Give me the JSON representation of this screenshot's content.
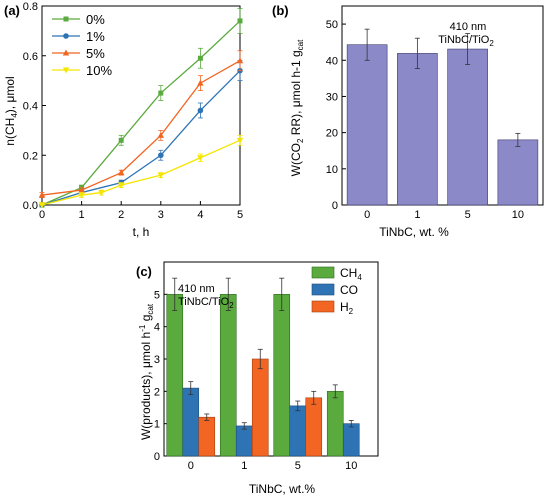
{
  "colors": {
    "green": "#5aaa3e",
    "blue": "#2e74b5",
    "orange": "#f26522",
    "yellow": "#f5e600",
    "bar_b": "#8c89c8"
  },
  "panel_a": {
    "label": "(a)",
    "xlabel": "t, h",
    "ylabel_main": "n(CH",
    "ylabel_sub": "4",
    "ylabel_tail": "), μmol"
  },
  "panel_b": {
    "label": "(b)",
    "annotation_line1": "410 nm",
    "annotation_line2_main": "TiNbC/TiO",
    "annotation_line2_sub": "2",
    "xlabel": "TiNbC, wt. %",
    "ylabel_main": "W(CO",
    "ylabel_sub1": "2",
    "ylabel_mid": " RR), μmol h-1 g",
    "ylabel_sub2": "cat"
  },
  "panel_c": {
    "label": "(c)",
    "annotation_line1": "410 nm",
    "annotation_line2_main": "TiNbC/TiO",
    "annotation_line2_sub": "2",
    "xlabel": "TiNbC, wt.%",
    "ylabel_main": "W(products), μmol h",
    "ylabel_sup": "-1",
    "ylabel_g": " g",
    "ylabel_sub": "cat",
    "legend": [
      {
        "main": "CH",
        "sub": "4"
      },
      {
        "main": "CO",
        "sub": ""
      },
      {
        "main": "H",
        "sub": "2"
      }
    ]
  },
  "chart_data": [
    {
      "type": "line",
      "title": "",
      "xlabel": "t, h",
      "ylabel": "n(CH4), μmol",
      "xlim": [
        0,
        5
      ],
      "ylim": [
        0,
        0.8
      ],
      "xticks": [
        "0",
        "1",
        "2",
        "3",
        "4",
        "5"
      ],
      "yticks": [
        "0.0",
        "0.2",
        "0.4",
        "0.6",
        "0.8"
      ],
      "legend_position": "top-left",
      "series": [
        {
          "name": "0%",
          "marker": "square",
          "x": [
            0,
            1,
            2,
            3,
            4,
            5
          ],
          "y": [
            0.0,
            0.07,
            0.26,
            0.45,
            0.59,
            0.74
          ],
          "err": [
            0.01,
            0.01,
            0.02,
            0.03,
            0.04,
            0.05
          ]
        },
        {
          "name": "1%",
          "marker": "circle",
          "x": [
            0,
            1,
            2,
            3,
            4,
            5
          ],
          "y": [
            0.0,
            0.05,
            0.09,
            0.2,
            0.38,
            0.54
          ],
          "err": [
            0.01,
            0.01,
            0.01,
            0.02,
            0.03,
            0.04
          ]
        },
        {
          "name": "5%",
          "marker": "triangle",
          "x": [
            0,
            1,
            2,
            3,
            4,
            5
          ],
          "y": [
            0.04,
            0.06,
            0.13,
            0.28,
            0.49,
            0.58
          ],
          "err": [
            0.01,
            0.01,
            0.01,
            0.02,
            0.03,
            0.04
          ]
        },
        {
          "name": "10%",
          "marker": "triangle-down",
          "x": [
            0,
            1,
            1.5,
            2,
            3,
            4,
            5
          ],
          "y": [
            0.0,
            0.04,
            0.05,
            0.08,
            0.12,
            0.19,
            0.26
          ],
          "err": [
            0.01,
            0.01,
            0.01,
            0.01,
            0.01,
            0.015,
            0.02
          ]
        }
      ]
    },
    {
      "type": "bar",
      "title": "",
      "xlabel": "TiNbC, wt. %",
      "ylabel": "W(CO2 RR), μmol h-1 gcat",
      "categories": [
        "0",
        "1",
        "5",
        "10"
      ],
      "ylim": [
        0,
        55
      ],
      "yticks": [
        "0",
        "10",
        "20",
        "30",
        "40",
        "50"
      ],
      "series": [
        {
          "values": [
            44.3,
            41.9,
            43.1,
            18.0
          ],
          "err": [
            4.3,
            4.2,
            4.3,
            1.8
          ]
        }
      ]
    },
    {
      "type": "bar",
      "title": "",
      "xlabel": "TiNbC, wt.%",
      "ylabel": "W(products), μmol h-1 gcat",
      "categories": [
        "0",
        "1",
        "5",
        "10"
      ],
      "ylim": [
        0,
        6
      ],
      "yticks": [
        "0",
        "1",
        "2",
        "3",
        "4",
        "5"
      ],
      "legend_position": "top-right",
      "series": [
        {
          "name": "CH4",
          "values": [
            5.0,
            5.0,
            5.0,
            2.0
          ],
          "err": [
            0.5,
            0.5,
            0.5,
            0.2
          ]
        },
        {
          "name": "CO",
          "values": [
            2.1,
            0.93,
            1.55,
            1.0
          ],
          "err": [
            0.2,
            0.1,
            0.15,
            0.1
          ]
        },
        {
          "name": "H2",
          "values": [
            1.2,
            3.0,
            1.8,
            0
          ],
          "err": [
            0.1,
            0.3,
            0.2,
            0
          ]
        }
      ]
    }
  ]
}
